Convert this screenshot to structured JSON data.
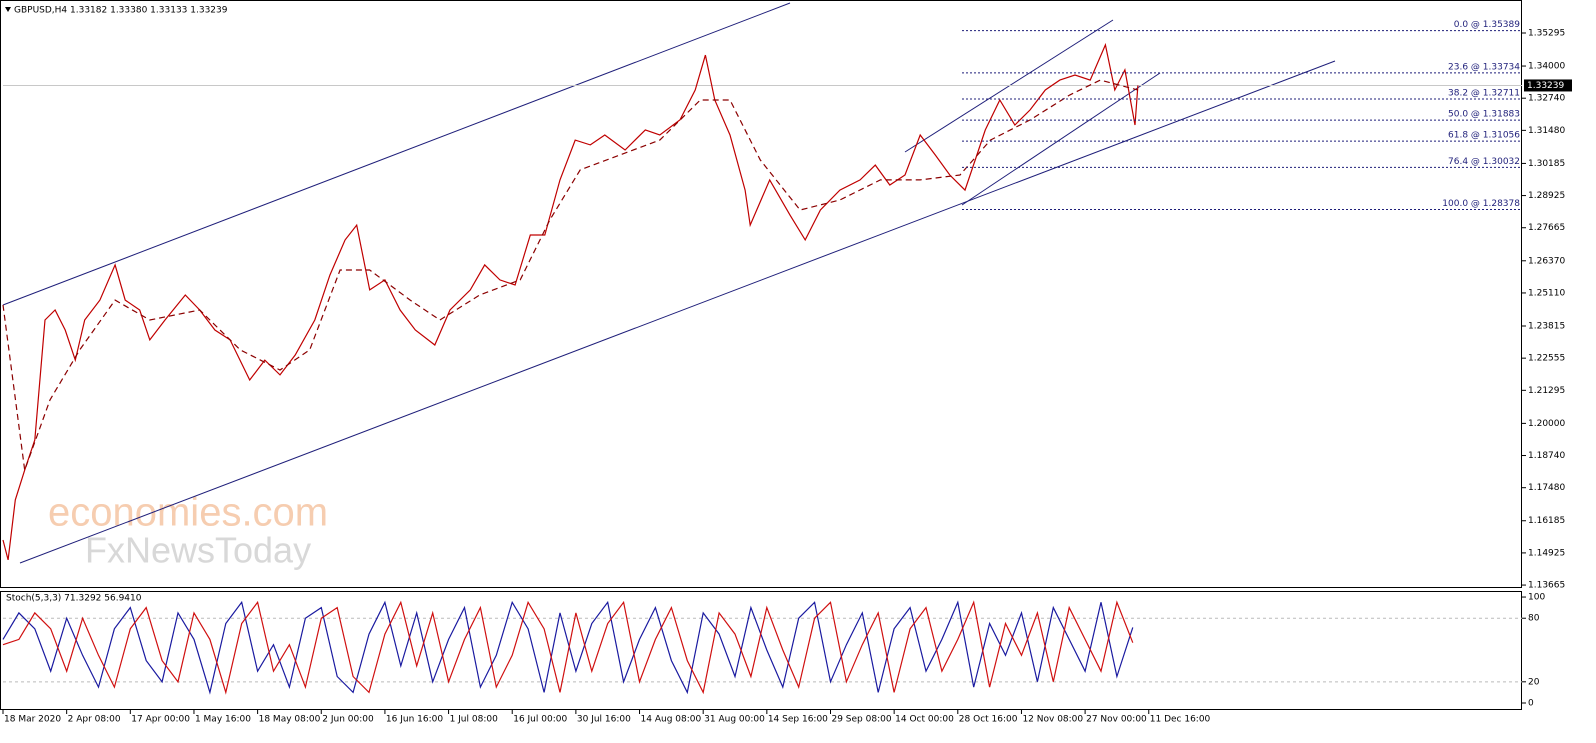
{
  "chart_data": [
    {
      "type": "line",
      "title": "GBPUSD,H4  1.33182 1.33380 1.33133 1.33239",
      "xlim": [
        0,
        2100
      ],
      "ylim": [
        1.1355,
        1.3647
      ],
      "yticks": [
        1.35295,
        {
          "value": 1.34,
          "label": "1.34000"
        },
        {
          "value": 1.3274,
          "label": "1.32740"
        },
        {
          "value": 1.3148,
          "label": "1.31480"
        },
        1.30185,
        1.28925,
        1.27665,
        {
          "value": 1.2637,
          "label": "1.26370"
        },
        {
          "value": 1.2511,
          "label": "1.25110"
        },
        1.23815,
        1.22555,
        1.21295,
        {
          "value": 1.2,
          "label": "1.20000"
        },
        {
          "value": 1.1874,
          "label": "1.18740"
        },
        {
          "value": 1.1748,
          "label": "1.17480"
        },
        1.16185,
        1.14925,
        1.13665
      ],
      "last_price": 1.33239,
      "series": [
        {
          "color": "#c00000",
          "dashed": false,
          "x": [
            0,
            7,
            17,
            30,
            44,
            58,
            72,
            86,
            100,
            113,
            134,
            155,
            169,
            189,
            203,
            224,
            252,
            272,
            293,
            314,
            341,
            362,
            383,
            404,
            431,
            452,
            473,
            489,
            507,
            528,
            549,
            570,
            597,
            618,
            646,
            666,
            687,
            708,
            729,
            749,
            770,
            791,
            812,
            832,
            860,
            888,
            908,
            936,
            957,
            971,
            984,
            1005,
            1026,
            1033,
            1060,
            1088,
            1109,
            1130,
            1157,
            1185,
            1206,
            1226,
            1247,
            1268,
            1289,
            1309,
            1330,
            1344,
            1358,
            1378,
            1399,
            1420,
            1441,
            1461,
            1482,
            1503,
            1524,
            1537,
            1551,
            1565,
            1569
          ],
          "values": [
            1.1543,
            1.1465,
            1.17,
            1.1817,
            1.1935,
            1.2405,
            1.2444,
            1.2366,
            1.2248,
            1.2405,
            1.2483,
            1.2621,
            1.2483,
            1.2444,
            1.2327,
            1.2405,
            1.2503,
            1.2444,
            1.2366,
            1.2327,
            1.217,
            1.2248,
            1.219,
            1.2268,
            1.2405,
            1.2581,
            1.2719,
            1.2777,
            1.2523,
            1.2562,
            1.2444,
            1.2366,
            1.2307,
            1.2444,
            1.2523,
            1.2621,
            1.2562,
            1.2542,
            1.2738,
            1.2738,
            1.2954,
            1.311,
            1.3091,
            1.313,
            1.3071,
            1.315,
            1.313,
            1.3189,
            1.3306,
            1.3443,
            1.3267,
            1.313,
            1.2914,
            1.2777,
            1.2954,
            1.2816,
            1.2719,
            1.2836,
            1.2914,
            1.2954,
            1.3012,
            1.2934,
            1.2973,
            1.313,
            1.3051,
            1.2973,
            1.2914,
            1.3032,
            1.315,
            1.3267,
            1.3169,
            1.3228,
            1.3306,
            1.3345,
            1.3365,
            1.3345,
            1.3483,
            1.3306,
            1.3385,
            1.3169,
            1.3324
          ]
        },
        {
          "color": "#8b0000",
          "dashed": true,
          "x": [
            0,
            30,
            65,
            106,
            155,
            203,
            272,
            328,
            383,
            424,
            466,
            507,
            563,
            604,
            659,
            715,
            756,
            798,
            853,
            908,
            964,
            1005,
            1047,
            1102,
            1157,
            1213,
            1268,
            1323,
            1365,
            1420,
            1475,
            1517,
            1569
          ],
          "values": [
            1.2464,
            1.1817,
            1.2092,
            1.2288,
            1.2483,
            1.2405,
            1.2444,
            1.2288,
            1.2209,
            1.2288,
            1.2601,
            1.2601,
            1.2483,
            1.2405,
            1.2503,
            1.2562,
            1.2797,
            1.2993,
            1.3052,
            1.311,
            1.3267,
            1.3267,
            1.3032,
            1.2836,
            1.2875,
            1.2954,
            1.2954,
            1.2973,
            1.311,
            1.3189,
            1.3287,
            1.3345,
            1.3306
          ]
        }
      ],
      "fib_levels": [
        {
          "label": "0.0 @ 1.35389",
          "value": 1.35389
        },
        {
          "label": "23.6 @ 1.33734",
          "value": 1.33734
        },
        {
          "label": "38.2 @ 1.32711",
          "value": 1.32711
        },
        {
          "label": "50.0 @ 1.31883",
          "value": 1.31883
        },
        {
          "label": "61.8 @ 1.31056",
          "value": 1.31056
        },
        {
          "label": "76.4 @ 1.30032",
          "value": 1.30032
        },
        {
          "label": "100.0 @ 1.28378",
          "value": 1.28378
        }
      ]
    },
    {
      "type": "line",
      "title": "Stoch(5,3,3) 71.3292 56.9410",
      "xlim": [
        0,
        2100
      ],
      "ylim": [
        -6.6,
        105.7
      ],
      "yticks": [
        100,
        80,
        20,
        0
      ],
      "levels": [
        80,
        20
      ],
      "xticks": [
        {
          "value": 0,
          "label": "18 Mar 2020"
        },
        {
          "value": 88,
          "label": "2 Apr 08:00"
        },
        {
          "value": 176,
          "label": "17 Apr 00:00"
        },
        {
          "value": 264,
          "label": "1 May 16:00"
        },
        {
          "value": 352,
          "label": "18 May 08:00"
        },
        {
          "value": 440,
          "label": "2 Jun 00:00"
        },
        {
          "value": 528,
          "label": "16 Jun 16:00"
        },
        {
          "value": 616,
          "label": "1 Jul 08:00"
        },
        {
          "value": 704,
          "label": "16 Jul 00:00"
        },
        {
          "value": 792,
          "label": "30 Jul 16:00"
        },
        {
          "value": 880,
          "label": "14 Aug 08:00"
        },
        {
          "value": 968,
          "label": "31 Aug 00:00"
        },
        {
          "value": 1056,
          "label": "14 Sep 16:00"
        },
        {
          "value": 1144,
          "label": "29 Sep 08:00"
        },
        {
          "value": 1232,
          "label": "14 Oct 00:00"
        },
        {
          "value": 1320,
          "label": "28 Oct 16:00"
        },
        {
          "value": 1408,
          "label": "12 Nov 08:00"
        },
        {
          "value": 1496,
          "label": "27 Nov 00:00"
        },
        {
          "value": 1584,
          "label": "11 Dec 16:00"
        }
      ],
      "series": [
        {
          "color": "#1a1aa0",
          "dashed": false,
          "x": [
            0,
            22,
            44,
            66,
            88,
            110,
            132,
            154,
            176,
            198,
            220,
            242,
            264,
            286,
            308,
            330,
            352,
            374,
            396,
            418,
            440,
            462,
            484,
            506,
            528,
            550,
            572,
            594,
            616,
            638,
            660,
            682,
            704,
            726,
            748,
            770,
            792,
            814,
            836,
            858,
            880,
            902,
            924,
            946,
            968,
            990,
            1012,
            1034,
            1056,
            1078,
            1100,
            1122,
            1144,
            1166,
            1188,
            1210,
            1232,
            1254,
            1276,
            1298,
            1320,
            1342,
            1364,
            1386,
            1408,
            1430,
            1452,
            1474,
            1496,
            1518,
            1540,
            1562
          ],
          "values": [
            60,
            85,
            70,
            30,
            80,
            45,
            15,
            70,
            90,
            40,
            20,
            85,
            60,
            10,
            75,
            95,
            30,
            55,
            15,
            80,
            90,
            25,
            10,
            65,
            95,
            35,
            85,
            20,
            60,
            90,
            15,
            45,
            95,
            70,
            10,
            85,
            30,
            75,
            95,
            20,
            60,
            90,
            40,
            10,
            85,
            65,
            25,
            90,
            50,
            15,
            80,
            95,
            20,
            55,
            85,
            10,
            70,
            90,
            30,
            60,
            95,
            15,
            75,
            45,
            85,
            20,
            90,
            60,
            30,
            95,
            25,
            71.3292
          ]
        },
        {
          "color": "#d01010",
          "dashed": false,
          "x": [
            0,
            22,
            44,
            66,
            88,
            110,
            132,
            154,
            176,
            198,
            220,
            242,
            264,
            286,
            308,
            330,
            352,
            374,
            396,
            418,
            440,
            462,
            484,
            506,
            528,
            550,
            572,
            594,
            616,
            638,
            660,
            682,
            704,
            726,
            748,
            770,
            792,
            814,
            836,
            858,
            880,
            902,
            924,
            946,
            968,
            990,
            1012,
            1034,
            1056,
            1078,
            1100,
            1122,
            1144,
            1166,
            1188,
            1210,
            1232,
            1254,
            1276,
            1298,
            1320,
            1342,
            1364,
            1386,
            1408,
            1430,
            1452,
            1474,
            1496,
            1518,
            1540,
            1562
          ],
          "values": [
            55,
            60,
            85,
            70,
            30,
            80,
            45,
            15,
            70,
            90,
            40,
            20,
            85,
            60,
            10,
            75,
            95,
            30,
            55,
            15,
            80,
            90,
            25,
            10,
            65,
            95,
            35,
            85,
            20,
            60,
            90,
            15,
            45,
            95,
            70,
            10,
            85,
            30,
            75,
            95,
            20,
            60,
            90,
            40,
            10,
            85,
            65,
            25,
            90,
            50,
            15,
            80,
            95,
            20,
            55,
            85,
            10,
            70,
            90,
            30,
            60,
            95,
            15,
            75,
            45,
            85,
            20,
            90,
            60,
            30,
            95,
            56.941
          ]
        }
      ]
    }
  ],
  "watermark": {
    "brand": "economies.com",
    "partner": "FxNewsToday"
  }
}
